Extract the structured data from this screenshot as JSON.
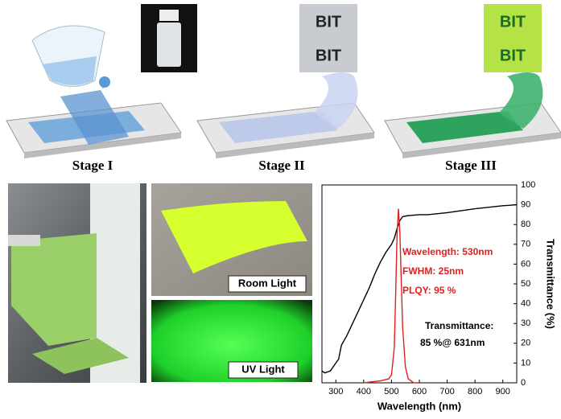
{
  "stages": [
    "Stage I",
    "Stage II",
    "Stage III"
  ],
  "samples": [
    "BIT",
    "BIT",
    "BIT",
    "BIT"
  ],
  "photos": [
    "Room Light",
    "UV Light"
  ],
  "chart_data": {
    "type": "line",
    "xlabel": "Wavelength (nm)",
    "ylabel": "Transmittance (%)",
    "xlim": [
      250,
      950
    ],
    "ylim": [
      0,
      100
    ],
    "xticks": [
      300,
      400,
      500,
      600,
      700,
      800,
      900
    ],
    "yticks": [
      0,
      10,
      20,
      30,
      40,
      50,
      60,
      70,
      80,
      90,
      100
    ],
    "series": [
      {
        "color": "#000000",
        "x": [
          250,
          260,
          280,
          300,
          310,
          320,
          340,
          360,
          380,
          400,
          420,
          440,
          460,
          480,
          500,
          510,
          520,
          530,
          540,
          560,
          600,
          631,
          700,
          800,
          900,
          950
        ],
        "values": [
          6,
          5,
          6,
          10,
          12,
          19,
          24,
          30,
          36,
          42,
          48,
          55,
          61,
          66,
          70,
          73,
          78,
          82,
          84,
          84.5,
          85,
          85,
          86,
          88,
          89.5,
          90
        ]
      },
      {
        "color": "#e02020",
        "x": [
          400,
          460,
          490,
          500,
          510,
          515,
          520,
          525,
          530,
          535,
          540,
          550,
          560,
          580,
          600
        ],
        "values": [
          0,
          1,
          2,
          4,
          18,
          45,
          75,
          88,
          76,
          52,
          28,
          8,
          2,
          0,
          0
        ]
      }
    ],
    "annotations": [
      {
        "text": "Wavelength: 530nm",
        "color": "#e02020"
      },
      {
        "text": "FWHM: 25nm",
        "color": "#e02020"
      },
      {
        "text": "PLQY: 95 %",
        "color": "#e02020"
      },
      {
        "text": "Transmittance:",
        "color": "#000000"
      },
      {
        "text": "85 %@ 631nm",
        "color": "#000000"
      }
    ]
  }
}
